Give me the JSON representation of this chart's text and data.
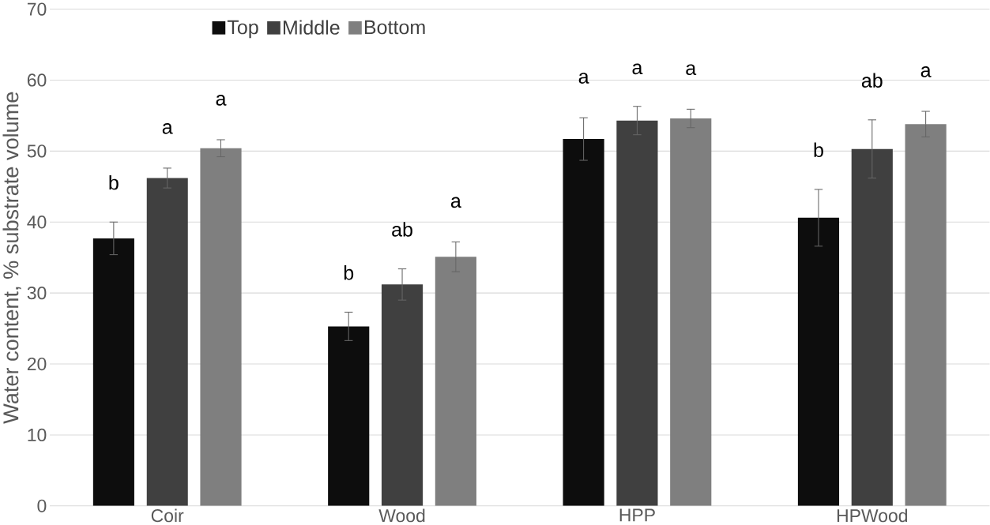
{
  "chart_data": {
    "type": "bar",
    "ylabel": "Water content, % substrate volume",
    "categories": [
      "Coir",
      "Wood",
      "HPP",
      "HPWood"
    ],
    "series": [
      {
        "name": "Top",
        "color": "#0d0d0d",
        "values": [
          37.7,
          25.3,
          51.7,
          40.6
        ],
        "errors": [
          2.3,
          2.0,
          3.0,
          4.0
        ]
      },
      {
        "name": "Middle",
        "color": "#404040",
        "values": [
          46.2,
          31.2,
          54.3,
          50.3
        ],
        "errors": [
          1.4,
          2.2,
          2.0,
          4.1
        ]
      },
      {
        "name": "Bottom",
        "color": "#7f7f7f",
        "values": [
          50.4,
          35.1,
          54.6,
          53.8
        ],
        "errors": [
          1.2,
          2.1,
          1.3,
          1.8
        ]
      }
    ],
    "ylim": [
      0,
      70
    ],
    "yticks": [
      0,
      10,
      20,
      30,
      40,
      50,
      60,
      70
    ],
    "grid": "y",
    "legend": "top",
    "annotations": [
      "b",
      "a",
      "a",
      "b",
      "ab",
      "a",
      "a",
      "a",
      "a",
      "b",
      "ab",
      "a"
    ]
  }
}
